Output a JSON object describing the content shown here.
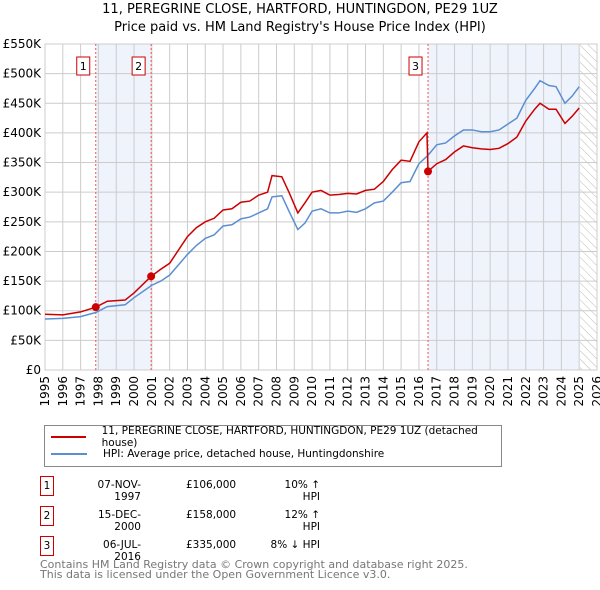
{
  "chart_data": {
    "type": "line",
    "title": "11, PEREGRINE CLOSE, HARTFORD, HUNTINGDON, PE29 1UZ",
    "subtitle": "Price paid vs. HM Land Registry's House Price Index (HPI)",
    "xlim": [
      1995,
      2026
    ],
    "ylim": [
      0,
      550000
    ],
    "x_ticks": [
      "1995",
      "1996",
      "1997",
      "1998",
      "1999",
      "2000",
      "2001",
      "2002",
      "2003",
      "2004",
      "2005",
      "2006",
      "2007",
      "2008",
      "2009",
      "2010",
      "2011",
      "2012",
      "2013",
      "2014",
      "2015",
      "2016",
      "2017",
      "2018",
      "2019",
      "2020",
      "2021",
      "2022",
      "2023",
      "2024",
      "2025",
      "2026"
    ],
    "y_ticks": [
      {
        "v": 0,
        "label": "£0"
      },
      {
        "v": 50000,
        "label": "£50K"
      },
      {
        "v": 100000,
        "label": "£100K"
      },
      {
        "v": 150000,
        "label": "£150K"
      },
      {
        "v": 200000,
        "label": "£200K"
      },
      {
        "v": 250000,
        "label": "£250K"
      },
      {
        "v": 300000,
        "label": "£300K"
      },
      {
        "v": 350000,
        "label": "£350K"
      },
      {
        "v": 400000,
        "label": "£400K"
      },
      {
        "v": 450000,
        "label": "£450K"
      },
      {
        "v": 500000,
        "label": "£500K"
      },
      {
        "v": 550000,
        "label": "£550K"
      }
    ],
    "grid": true,
    "shaded_ranges": [
      [
        1997.85,
        2000.96
      ],
      [
        2016.51,
        2025.0
      ]
    ],
    "forecast_hatch_from": 2025.05,
    "series": [
      {
        "name": "11, PEREGRINE CLOSE, HARTFORD, HUNTINGDON, PE29 1UZ (detached house)",
        "color": "#cc0000",
        "x": [
          1995,
          1996,
          1997,
          1997.85,
          1998.5,
          1999.5,
          2000,
          2000.96,
          2001.5,
          2002,
          2003,
          2003.5,
          2004,
          2004.5,
          2005,
          2005.5,
          2006,
          2006.5,
          2007,
          2007.5,
          2007.75,
          2008.3,
          2008.7,
          2009.2,
          2009.6,
          2010,
          2010.5,
          2011,
          2011.5,
          2012,
          2012.5,
          2013,
          2013.5,
          2014,
          2014.5,
          2015,
          2015.5,
          2016,
          2016.45,
          2016.51,
          2017,
          2017.5,
          2018,
          2018.5,
          2019,
          2019.5,
          2020,
          2020.5,
          2021,
          2021.5,
          2022,
          2022.5,
          2022.8,
          2023.3,
          2023.7,
          2024.2,
          2024.6,
          2025
        ],
        "y": [
          94000,
          93000,
          98000,
          106000,
          116000,
          118000,
          130000,
          158000,
          170000,
          180000,
          225000,
          240000,
          250000,
          256000,
          270000,
          272000,
          283000,
          285000,
          295000,
          300000,
          328000,
          326000,
          300000,
          265000,
          282000,
          300000,
          303000,
          295000,
          296000,
          298000,
          297000,
          303000,
          305000,
          318000,
          338000,
          354000,
          352000,
          385000,
          400000,
          335000,
          348000,
          355000,
          368000,
          378000,
          375000,
          373000,
          372000,
          374000,
          382000,
          393000,
          420000,
          440000,
          450000,
          440000,
          440000,
          416000,
          428000,
          442000
        ]
      },
      {
        "name": "HPI: Average price, detached house, Huntingdonshire",
        "color": "#5b8fd1",
        "x": [
          1995,
          1996,
          1997,
          1997.85,
          1998.5,
          1999.5,
          2000,
          2001,
          2001.5,
          2002,
          2003,
          2003.5,
          2004,
          2004.5,
          2005,
          2005.5,
          2006,
          2006.5,
          2007,
          2007.5,
          2007.75,
          2008.3,
          2008.7,
          2009.2,
          2009.6,
          2010,
          2010.5,
          2011,
          2011.5,
          2012,
          2012.5,
          2013,
          2013.5,
          2014,
          2014.5,
          2015,
          2015.5,
          2016,
          2016.5,
          2017,
          2017.5,
          2018,
          2018.5,
          2019,
          2019.5,
          2020,
          2020.5,
          2021,
          2021.5,
          2022,
          2022.5,
          2022.8,
          2023.3,
          2023.7,
          2024.2,
          2024.6,
          2025
        ],
        "y": [
          86000,
          87000,
          90000,
          97000,
          107000,
          110000,
          122000,
          143000,
          150000,
          160000,
          195000,
          210000,
          222000,
          228000,
          243000,
          245000,
          255000,
          258000,
          265000,
          272000,
          292000,
          294000,
          268000,
          237000,
          248000,
          268000,
          272000,
          265000,
          265000,
          268000,
          266000,
          272000,
          282000,
          285000,
          300000,
          316000,
          318000,
          348000,
          362000,
          380000,
          383000,
          395000,
          405000,
          405000,
          402000,
          402000,
          405000,
          415000,
          425000,
          455000,
          475000,
          488000,
          480000,
          478000,
          450000,
          462000,
          478000
        ]
      }
    ],
    "sales": [
      {
        "label": "1",
        "x": 1997.85,
        "y": 106000,
        "date": "07-NOV-1997",
        "price": "£106,000",
        "hpi": "10% ↑ HPI"
      },
      {
        "label": "2",
        "x": 2000.96,
        "y": 158000,
        "date": "15-DEC-2000",
        "price": "£158,000",
        "hpi": "12% ↑ HPI"
      },
      {
        "label": "3",
        "x": 2016.51,
        "y": 335000,
        "date": "06-JUL-2016",
        "price": "£335,000",
        "hpi": "8% ↓ HPI"
      }
    ]
  },
  "footer": {
    "line1": "Contains HM Land Registry data © Crown copyright and database right 2025.",
    "line2": "This data is licensed under the Open Government Licence v3.0."
  }
}
